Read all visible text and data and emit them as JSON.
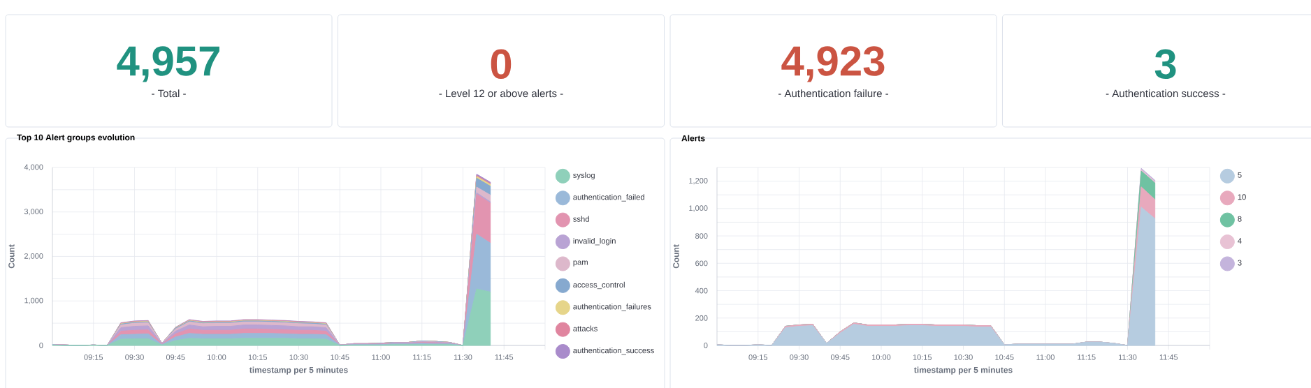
{
  "chart_data": [
    {
      "type": "other",
      "title": "4,957",
      "subtitle": "- Total -",
      "color": "#209280"
    },
    {
      "type": "other",
      "title": "0",
      "subtitle": "- Level 12 or above alerts -",
      "color": "#cb5442"
    },
    {
      "type": "other",
      "title": "4,923",
      "subtitle": "- Authentication failure -",
      "color": "#cb5442"
    },
    {
      "type": "other",
      "title": "3",
      "subtitle": "- Authentication success -",
      "color": "#209280"
    },
    {
      "type": "area",
      "stacked": true,
      "title": "Top 10 Alert groups evolution",
      "xlabel": "timestamp per 5 minutes",
      "ylabel": "Count",
      "grid": true,
      "legend": "right",
      "x": [
        9,
        9.0833,
        9.1667,
        9.25,
        9.3333,
        9.4167,
        9.5,
        9.5833,
        9.6667,
        9.75,
        9.8333,
        9.9167,
        10,
        10.0833,
        10.1667,
        10.25,
        10.3333,
        10.4167,
        10.5,
        10.5833,
        10.6667,
        10.75,
        10.8333,
        10.9167,
        11,
        11.0833,
        11.1667,
        11.25,
        11.3333,
        11.4167,
        11.5,
        11.5833,
        11.6667
      ],
      "xlim": [
        9,
        12
      ],
      "xticks": [
        {
          "value": 9.25,
          "label": "09:15"
        },
        {
          "value": 9.5,
          "label": "09:30"
        },
        {
          "value": 9.75,
          "label": "09:45"
        },
        {
          "value": 10,
          "label": "10:00"
        },
        {
          "value": 10.25,
          "label": "10:15"
        },
        {
          "value": 10.5,
          "label": "10:30"
        },
        {
          "value": 10.75,
          "label": "10:45"
        },
        {
          "value": 11,
          "label": "11:00"
        },
        {
          "value": 11.25,
          "label": "11:15"
        },
        {
          "value": 11.5,
          "label": "11:30"
        },
        {
          "value": 11.75,
          "label": "11:45"
        },
        {
          "value": 12,
          "label": null
        }
      ],
      "ylim": [
        0,
        4000
      ],
      "yticks": [
        0,
        {
          "value": 500,
          "label": null
        },
        {
          "value": 1000,
          "label": "1,000"
        },
        {
          "value": 1500,
          "label": null
        },
        {
          "value": 2000,
          "label": "2,000"
        },
        {
          "value": 2500,
          "label": null
        },
        {
          "value": 3000,
          "label": "3,000"
        },
        {
          "value": 3500,
          "label": null
        },
        {
          "value": 4000,
          "label": "4,000"
        }
      ],
      "series": [
        {
          "name": "syslog",
          "color": "#8fd0ba",
          "values": [
            10,
            0,
            0,
            10,
            0,
            140,
            150,
            150,
            10,
            110,
            160,
            150,
            150,
            150,
            160,
            160,
            160,
            160,
            150,
            150,
            140,
            0,
            10,
            10,
            10,
            20,
            20,
            20,
            20,
            20,
            0,
            1270,
            1200
          ]
        },
        {
          "name": "authentication_failed",
          "color": "#9ab9d9",
          "values": [
            10,
            0,
            0,
            0,
            0,
            100,
            100,
            110,
            10,
            80,
            110,
            100,
            100,
            100,
            110,
            110,
            110,
            100,
            100,
            100,
            100,
            10,
            10,
            10,
            10,
            20,
            20,
            30,
            20,
            20,
            0,
            1230,
            1100
          ]
        },
        {
          "name": "sshd",
          "color": "#e294b0",
          "values": [
            0,
            10,
            0,
            0,
            0,
            80,
            90,
            90,
            10,
            70,
            100,
            90,
            90,
            90,
            100,
            100,
            90,
            90,
            90,
            90,
            80,
            0,
            10,
            10,
            10,
            10,
            10,
            20,
            20,
            10,
            0,
            900,
            900
          ]
        },
        {
          "name": "invalid_login",
          "color": "#b9a3d4",
          "values": [
            0,
            0,
            0,
            0,
            0,
            80,
            90,
            90,
            10,
            60,
            90,
            80,
            90,
            90,
            90,
            90,
            90,
            90,
            80,
            80,
            80,
            0,
            10,
            10,
            10,
            10,
            10,
            10,
            10,
            10,
            0,
            30,
            30
          ]
        },
        {
          "name": "pam",
          "color": "#ddb8cb",
          "values": [
            0,
            0,
            0,
            0,
            0,
            60,
            70,
            70,
            10,
            50,
            70,
            70,
            70,
            70,
            70,
            70,
            70,
            70,
            70,
            60,
            60,
            0,
            0,
            0,
            0,
            0,
            0,
            10,
            10,
            0,
            0,
            130,
            150
          ]
        },
        {
          "name": "access_control",
          "color": "#86a9cf",
          "values": [
            0,
            0,
            0,
            0,
            0,
            20,
            20,
            20,
            0,
            20,
            20,
            20,
            20,
            20,
            20,
            20,
            20,
            20,
            20,
            20,
            20,
            0,
            0,
            0,
            10,
            10,
            10,
            10,
            10,
            10,
            0,
            200,
            200
          ]
        },
        {
          "name": "authentication_failures",
          "color": "#e6d58a",
          "values": [
            0,
            0,
            0,
            0,
            0,
            10,
            10,
            10,
            0,
            10,
            10,
            10,
            10,
            10,
            10,
            10,
            10,
            10,
            10,
            10,
            10,
            0,
            0,
            0,
            0,
            0,
            0,
            0,
            0,
            0,
            0,
            40,
            40
          ]
        },
        {
          "name": "attacks",
          "color": "#e0859f",
          "values": [
            0,
            0,
            0,
            0,
            0,
            10,
            10,
            10,
            0,
            0,
            10,
            10,
            10,
            10,
            10,
            10,
            10,
            10,
            10,
            10,
            10,
            0,
            0,
            0,
            0,
            0,
            0,
            0,
            0,
            0,
            0,
            20,
            20
          ]
        },
        {
          "name": "authentication_success",
          "color": "#a98bcb",
          "values": [
            0,
            0,
            0,
            0,
            0,
            10,
            10,
            10,
            0,
            10,
            10,
            10,
            10,
            10,
            10,
            10,
            10,
            10,
            10,
            10,
            10,
            0,
            0,
            0,
            0,
            0,
            0,
            0,
            0,
            0,
            0,
            30,
            30
          ]
        }
      ]
    },
    {
      "type": "area",
      "stacked": true,
      "title": "Alerts",
      "xlabel": "timestamp per 5 minutes",
      "ylabel": "Count",
      "grid": true,
      "legend": "right",
      "x": [
        9,
        9.0833,
        9.1667,
        9.25,
        9.3333,
        9.4167,
        9.5,
        9.5833,
        9.6667,
        9.75,
        9.8333,
        9.9167,
        10,
        10.0833,
        10.1667,
        10.25,
        10.3333,
        10.4167,
        10.5,
        10.5833,
        10.6667,
        10.75,
        10.8333,
        10.9167,
        11,
        11.0833,
        11.1667,
        11.25,
        11.3333,
        11.4167,
        11.5,
        11.5833,
        11.6667
      ],
      "xlim": [
        9,
        12
      ],
      "xticks": [
        {
          "value": 9.25,
          "label": "09:15"
        },
        {
          "value": 9.5,
          "label": "09:30"
        },
        {
          "value": 9.75,
          "label": "09:45"
        },
        {
          "value": 10,
          "label": "10:00"
        },
        {
          "value": 10.25,
          "label": "10:15"
        },
        {
          "value": 10.5,
          "label": "10:30"
        },
        {
          "value": 10.75,
          "label": "10:45"
        },
        {
          "value": 11,
          "label": "11:00"
        },
        {
          "value": 11.25,
          "label": "11:15"
        },
        {
          "value": 11.5,
          "label": "11:30"
        },
        {
          "value": 11.75,
          "label": "11:45"
        },
        {
          "value": 12,
          "label": null
        }
      ],
      "ylim": [
        0,
        1300
      ],
      "yticks": [
        0,
        {
          "value": 100,
          "label": null
        },
        200,
        {
          "value": 300,
          "label": null
        },
        400,
        {
          "value": 500,
          "label": null
        },
        600,
        {
          "value": 700,
          "label": null
        },
        800,
        {
          "value": 900,
          "label": null
        },
        {
          "value": 1000,
          "label": "1,000"
        },
        {
          "value": 1100,
          "label": null
        },
        {
          "value": 1200,
          "label": "1,200"
        },
        {
          "value": 1300,
          "label": null
        }
      ],
      "series": [
        {
          "name": "5",
          "color": "#b6cce0",
          "values": [
            5,
            0,
            0,
            5,
            0,
            130,
            140,
            145,
            15,
            90,
            155,
            140,
            140,
            140,
            145,
            145,
            140,
            140,
            140,
            135,
            135,
            5,
            10,
            10,
            10,
            10,
            10,
            25,
            25,
            15,
            0,
            1010,
            926
          ]
        },
        {
          "name": "10",
          "color": "#e8a9bd",
          "values": [
            0,
            0,
            0,
            0,
            0,
            10,
            10,
            10,
            0,
            10,
            10,
            10,
            10,
            10,
            10,
            10,
            10,
            10,
            10,
            10,
            10,
            0,
            0,
            0,
            0,
            0,
            0,
            0,
            0,
            0,
            0,
            148,
            140
          ]
        },
        {
          "name": "8",
          "color": "#6fc2a2",
          "values": [
            0,
            0,
            0,
            0,
            0,
            0,
            0,
            0,
            0,
            0,
            0,
            0,
            0,
            0,
            0,
            0,
            0,
            0,
            0,
            0,
            0,
            0,
            0,
            0,
            0,
            0,
            0,
            0,
            0,
            0,
            0,
            116,
            121
          ]
        },
        {
          "name": "4",
          "color": "#e8c2d4",
          "values": [
            0,
            0,
            0,
            0,
            0,
            0,
            0,
            0,
            0,
            0,
            0,
            0,
            0,
            0,
            0,
            0,
            0,
            0,
            0,
            0,
            0,
            0,
            0,
            0,
            0,
            0,
            0,
            0,
            0,
            0,
            0,
            10,
            10
          ]
        },
        {
          "name": "3",
          "color": "#c4b4dc",
          "values": [
            0,
            0,
            0,
            0,
            0,
            0,
            0,
            0,
            0,
            0,
            0,
            0,
            0,
            0,
            0,
            0,
            0,
            0,
            0,
            0,
            0,
            0,
            0,
            0,
            0,
            0,
            0,
            0,
            0,
            0,
            0,
            10,
            10
          ]
        }
      ]
    }
  ]
}
